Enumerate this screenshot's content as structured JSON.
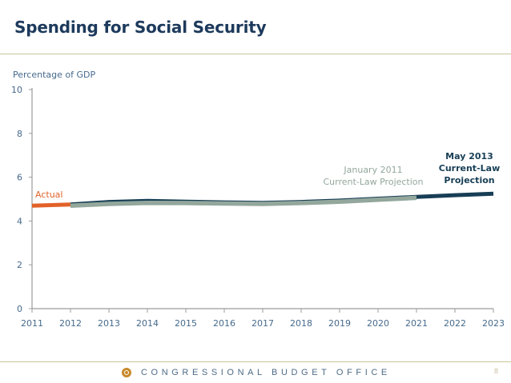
{
  "slide": {
    "title": "Spending for Social Security",
    "footer_org": "CONGRESSIONAL BUDGET OFFICE",
    "page_number": "8"
  },
  "colors": {
    "actual": "#e2622a",
    "jan2011": "#93a79c",
    "may2013": "#173e55",
    "axis": "#9b9b9b",
    "tick_label": "#466a8c",
    "title": "#1d3a5c",
    "rule": "#c9c59a"
  },
  "chart_data": {
    "type": "line",
    "ylabel": "Percentage of GDP",
    "xlabel": "",
    "xlim": [
      2011,
      2023
    ],
    "ylim": [
      0,
      10
    ],
    "x_ticks": [
      "2011",
      "2012",
      "2013",
      "2014",
      "2015",
      "2016",
      "2017",
      "2018",
      "2019",
      "2020",
      "2021",
      "2022",
      "2023"
    ],
    "y_ticks": [
      "0",
      "2",
      "4",
      "6",
      "8",
      "10"
    ],
    "grid": false,
    "series": [
      {
        "name": "Actual",
        "x": [
          2011,
          2012
        ],
        "y": [
          4.7,
          4.75
        ]
      },
      {
        "name": "May 2013 Current-Law Projection",
        "x": [
          2012,
          2013,
          2014,
          2015,
          2016,
          2017,
          2018,
          2019,
          2020,
          2021,
          2022,
          2023
        ],
        "y": [
          4.75,
          4.87,
          4.92,
          4.88,
          4.85,
          4.83,
          4.87,
          4.93,
          5.02,
          5.1,
          5.18,
          5.25
        ]
      },
      {
        "name": "January 2011 Current-Law Projection",
        "x": [
          2012,
          2013,
          2014,
          2015,
          2016,
          2017,
          2018,
          2019,
          2020,
          2021
        ],
        "y": [
          4.7,
          4.78,
          4.83,
          4.82,
          4.8,
          4.78,
          4.82,
          4.88,
          4.97,
          5.06
        ]
      }
    ],
    "annotations": [
      {
        "series": "Actual",
        "lines": [
          "Actual"
        ]
      },
      {
        "series": "January 2011 Current-Law Projection",
        "lines": [
          "January 2011",
          "Current-Law Projection"
        ]
      },
      {
        "series": "May 2013 Current-Law Projection",
        "lines": [
          "May 2013",
          "Current-Law",
          "Projection"
        ]
      }
    ]
  }
}
